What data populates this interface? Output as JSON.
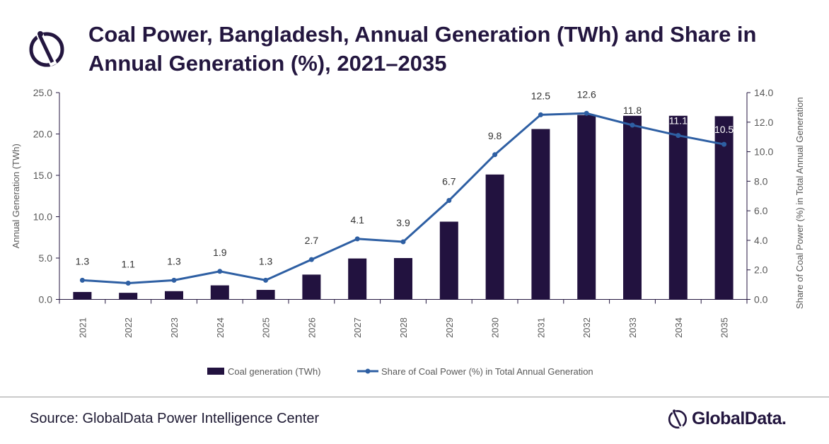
{
  "header": {
    "title": "Coal Power, Bangladesh, Annual Generation (TWh) and Share in Annual Generation (%), 2021–2035"
  },
  "footer": {
    "source": "Source: GlobalData Power Intelligence Center",
    "brand": "GlobalData."
  },
  "chart_data": {
    "type": "bar+line",
    "title": "Coal Power, Bangladesh, Annual Generation (TWh) and Share in Annual Generation (%), 2021–2035",
    "categories": [
      "2021",
      "2022",
      "2023",
      "2024",
      "2025",
      "2026",
      "2027",
      "2028",
      "2029",
      "2030",
      "2031",
      "2032",
      "2033",
      "2034",
      "2035"
    ],
    "series": [
      {
        "name": "Coal generation (TWh)",
        "type": "bar",
        "axis": "left",
        "color": "#22123f",
        "values": [
          0.9,
          0.8,
          1.0,
          1.7,
          1.15,
          3.0,
          4.95,
          5.0,
          9.4,
          15.1,
          20.6,
          22.3,
          22.2,
          22.2,
          22.15
        ]
      },
      {
        "name": "Share of Coal Power (%) in Total Annual Generation",
        "type": "line",
        "axis": "right",
        "color": "#2e5fa3",
        "values": [
          1.3,
          1.1,
          1.3,
          1.9,
          1.3,
          2.7,
          4.1,
          3.9,
          6.7,
          9.8,
          12.5,
          12.6,
          11.8,
          11.1,
          10.5
        ],
        "labels": [
          "1.3",
          "1.1",
          "1.3",
          "1.9",
          "1.3",
          "2.7",
          "4.1",
          "3.9",
          "6.7",
          "9.8",
          "12.5",
          "12.6",
          "11.8",
          "11.1",
          "10.5"
        ]
      }
    ],
    "ylabel": "Annual Generation (TWh)",
    "y2label": "Share of Coal Power (%) in Total Annual Generation",
    "ylim": [
      0,
      25
    ],
    "y2lim": [
      0,
      14
    ],
    "yticks": [
      "0.0",
      "5.0",
      "10.0",
      "15.0",
      "20.0",
      "25.0"
    ],
    "y2ticks": [
      "0.0",
      "2.0",
      "4.0",
      "6.0",
      "8.0",
      "10.0",
      "12.0",
      "14.0"
    ],
    "grid": false,
    "legend": "bottom"
  }
}
